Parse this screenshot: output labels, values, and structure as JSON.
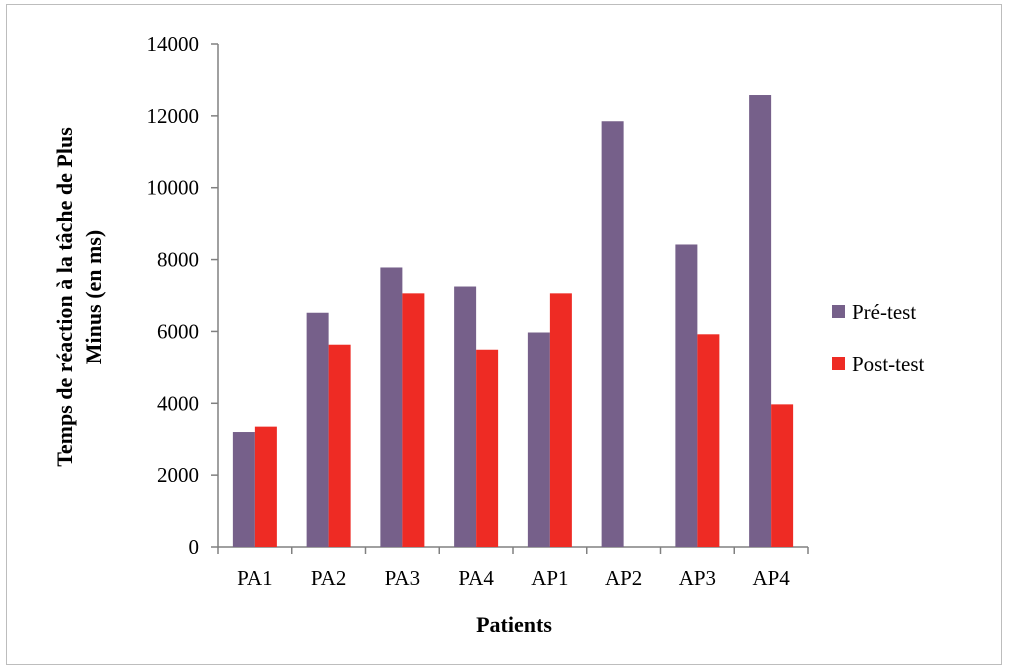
{
  "chart_data": {
    "type": "bar",
    "categories": [
      "PA1",
      "PA2",
      "PA3",
      "PA4",
      "AP1",
      "AP2",
      "AP3",
      "AP4"
    ],
    "series": [
      {
        "name": "Pré-test",
        "color": "#76608a",
        "values": [
          3200,
          6520,
          7780,
          7250,
          5970,
          11850,
          8420,
          12580
        ]
      },
      {
        "name": "Post-test",
        "color": "#ee2b24",
        "values": [
          3350,
          5630,
          7060,
          5490,
          7060,
          0,
          5920,
          3970
        ]
      }
    ],
    "xlabel": "Patients",
    "ylabel_line1": "Temps de réaction à la tâche de Plus",
    "ylabel_line2": "Minus (en ms)",
    "ylim": [
      0,
      14000
    ],
    "yticks": [
      0,
      2000,
      4000,
      6000,
      8000,
      10000,
      12000,
      14000
    ],
    "grid": false,
    "legend_position": "right"
  }
}
